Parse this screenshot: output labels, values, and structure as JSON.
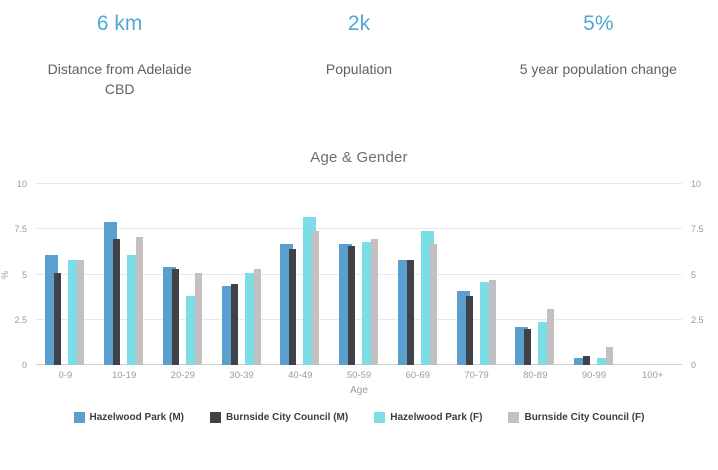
{
  "stats": [
    {
      "value": "6 km",
      "label": "Distance from Adelaide CBD"
    },
    {
      "value": "2k",
      "label": "Population"
    },
    {
      "value": "5%",
      "label": "5 year population change"
    }
  ],
  "chart_data": {
    "type": "bar",
    "title": "Age & Gender",
    "xlabel": "Age",
    "ylabel": "%",
    "ylim": [
      0,
      10
    ],
    "yticks": [
      0,
      2.5,
      5,
      7.5,
      10
    ],
    "grid": true,
    "legend_position": "bottom",
    "categories": [
      "0-9",
      "10-19",
      "20-29",
      "30-39",
      "40-49",
      "50-59",
      "60-69",
      "70-79",
      "80-89",
      "90-99",
      "100+"
    ],
    "series": [
      {
        "name": "Hazelwood Park (M)",
        "color": "#5b9fce",
        "values": [
          6.1,
          7.9,
          5.4,
          4.4,
          6.7,
          6.7,
          5.8,
          4.1,
          2.1,
          0.4,
          0
        ]
      },
      {
        "name": "Burnside City Council (M)",
        "color": "#3f4247",
        "values": [
          5.1,
          7.0,
          5.3,
          4.5,
          6.4,
          6.6,
          5.8,
          3.8,
          2.0,
          0.5,
          0
        ]
      },
      {
        "name": "Hazelwood Park (F)",
        "color": "#7ddde6",
        "values": [
          5.8,
          6.1,
          3.8,
          5.1,
          8.2,
          6.8,
          7.4,
          4.6,
          2.4,
          0.4,
          0
        ]
      },
      {
        "name": "Burnside City Council (F)",
        "color": "#c4bfc1",
        "values": [
          5.8,
          7.1,
          5.1,
          5.3,
          7.4,
          7.0,
          6.7,
          4.7,
          3.1,
          1.0,
          0
        ]
      }
    ]
  }
}
